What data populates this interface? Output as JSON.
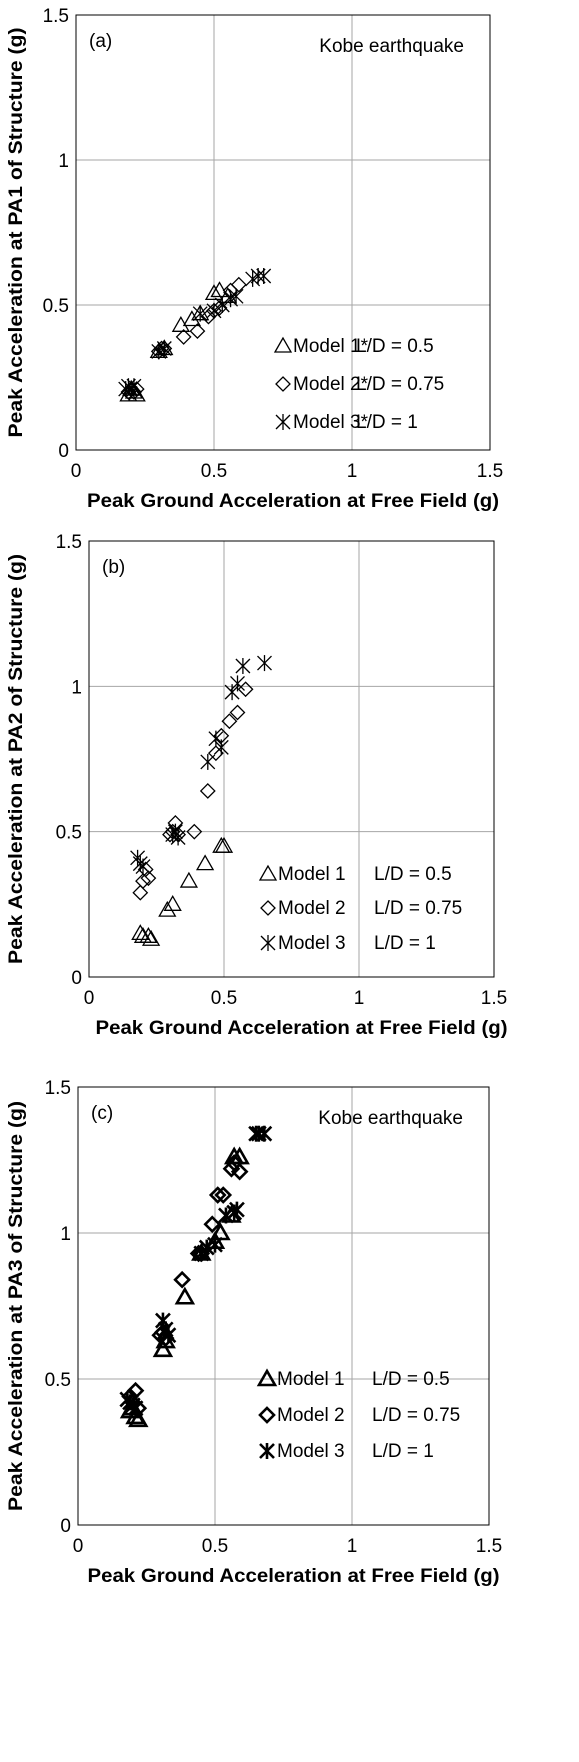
{
  "chart_data": [
    {
      "type": "scatter",
      "panel_label": "(a)",
      "annotation": "Kobe earthquake",
      "xlabel": "Peak Ground Acceleration at Free Field (g)",
      "ylabel": "Peak Acceleration at PA1 of Structure (g)",
      "xlim": [
        0,
        1.5
      ],
      "ylim": [
        0,
        1.5
      ],
      "xticks": [
        "0",
        "0.5",
        "1",
        "1.5"
      ],
      "yticks": [
        "0",
        "0.5",
        "1",
        "1.5"
      ],
      "grid": true,
      "legend_position": "bottom-right",
      "series": [
        {
          "name": "Model 1*",
          "ld": "L/D = 0.5",
          "marker": "triangle",
          "x": [
            0.19,
            0.2,
            0.21,
            0.22,
            0.3,
            0.32,
            0.38,
            0.42,
            0.45,
            0.5,
            0.52,
            0.55
          ],
          "y": [
            0.19,
            0.21,
            0.2,
            0.19,
            0.34,
            0.35,
            0.43,
            0.45,
            0.47,
            0.54,
            0.55,
            0.53
          ]
        },
        {
          "name": "Model 2*",
          "ld": "L/D = 0.75",
          "marker": "diamond",
          "x": [
            0.19,
            0.2,
            0.21,
            0.22,
            0.3,
            0.31,
            0.32,
            0.39,
            0.44,
            0.48,
            0.5,
            0.52,
            0.56,
            0.59
          ],
          "y": [
            0.2,
            0.21,
            0.2,
            0.21,
            0.34,
            0.35,
            0.35,
            0.39,
            0.41,
            0.46,
            0.48,
            0.49,
            0.55,
            0.57
          ]
        },
        {
          "name": "Model 3*",
          "ld": "L/D = 1",
          "marker": "asterisk",
          "x": [
            0.18,
            0.19,
            0.2,
            0.21,
            0.3,
            0.32,
            0.45,
            0.5,
            0.53,
            0.56,
            0.58,
            0.64,
            0.66,
            0.68
          ],
          "y": [
            0.21,
            0.22,
            0.21,
            0.22,
            0.34,
            0.35,
            0.47,
            0.48,
            0.5,
            0.52,
            0.53,
            0.59,
            0.6,
            0.6
          ]
        }
      ]
    },
    {
      "type": "scatter",
      "panel_label": "(b)",
      "annotation": "",
      "xlabel": "Peak Ground Acceleration at Free Field (g)",
      "ylabel": "Peak Acceleration at PA2 of Structure (g)",
      "xlim": [
        0,
        1.5
      ],
      "ylim": [
        0,
        1.5
      ],
      "xticks": [
        "0",
        "0.5",
        "1",
        "1.5"
      ],
      "yticks": [
        "0",
        "0.5",
        "1",
        "1.5"
      ],
      "grid": true,
      "legend_position": "bottom-right",
      "series": [
        {
          "name": "Model 1",
          "ld": "L/D = 0.5",
          "marker": "triangle",
          "x": [
            0.19,
            0.2,
            0.22,
            0.23,
            0.29,
            0.31,
            0.37,
            0.43,
            0.49,
            0.5
          ],
          "y": [
            0.15,
            0.14,
            0.14,
            0.13,
            0.23,
            0.25,
            0.33,
            0.39,
            0.45,
            0.45
          ]
        },
        {
          "name": "Model 2",
          "ld": "L/D = 0.75",
          "marker": "diamond",
          "x": [
            0.19,
            0.2,
            0.21,
            0.22,
            0.3,
            0.31,
            0.32,
            0.33,
            0.39,
            0.44,
            0.47,
            0.49,
            0.52,
            0.55,
            0.58
          ],
          "y": [
            0.29,
            0.33,
            0.37,
            0.34,
            0.49,
            0.5,
            0.53,
            0.49,
            0.5,
            0.64,
            0.77,
            0.83,
            0.88,
            0.91,
            0.99
          ]
        },
        {
          "name": "Model 3",
          "ld": "L/D = 1",
          "marker": "asterisk",
          "x": [
            0.18,
            0.19,
            0.2,
            0.31,
            0.32,
            0.33,
            0.44,
            0.47,
            0.49,
            0.53,
            0.55,
            0.57,
            0.65
          ],
          "y": [
            0.41,
            0.39,
            0.38,
            0.49,
            0.5,
            0.48,
            0.74,
            0.82,
            0.79,
            0.98,
            1.01,
            1.07,
            1.08
          ]
        }
      ]
    },
    {
      "type": "scatter",
      "panel_label": "(c)",
      "annotation": "Kobe earthquake",
      "xlabel": "Peak Ground Acceleration at Free Field (g)",
      "ylabel": "Peak Acceleration at PA3 of Structure (g)",
      "xlim": [
        0,
        1.5
      ],
      "ylim": [
        0,
        1.5
      ],
      "xticks": [
        "0",
        "0.5",
        "1",
        "1.5"
      ],
      "yticks": [
        "0",
        "0.5",
        "1",
        "1.5"
      ],
      "grid": true,
      "legend_position": "bottom-right",
      "series": [
        {
          "name": "Model 1",
          "ld": "L/D = 0.5",
          "marker": "triangle",
          "x": [
            0.19,
            0.2,
            0.21,
            0.22,
            0.31,
            0.32,
            0.39,
            0.45,
            0.5,
            0.52,
            0.56,
            0.57,
            0.59
          ],
          "y": [
            0.39,
            0.4,
            0.37,
            0.36,
            0.6,
            0.63,
            0.78,
            0.93,
            0.97,
            1.0,
            1.06,
            1.26,
            1.26
          ]
        },
        {
          "name": "Model 2",
          "ld": "L/D = 0.75",
          "marker": "diamond",
          "x": [
            0.19,
            0.2,
            0.21,
            0.22,
            0.3,
            0.31,
            0.32,
            0.38,
            0.44,
            0.45,
            0.49,
            0.51,
            0.53,
            0.56,
            0.57,
            0.59
          ],
          "y": [
            0.44,
            0.42,
            0.46,
            0.4,
            0.65,
            0.66,
            0.64,
            0.84,
            0.93,
            0.93,
            1.03,
            1.13,
            1.13,
            1.22,
            1.24,
            1.21
          ]
        },
        {
          "name": "Model 3",
          "ld": "L/D = 1",
          "marker": "asterisk",
          "x": [
            0.18,
            0.19,
            0.2,
            0.21,
            0.31,
            0.32,
            0.33,
            0.45,
            0.47,
            0.5,
            0.54,
            0.57,
            0.58,
            0.65,
            0.66,
            0.68
          ],
          "y": [
            0.43,
            0.42,
            0.41,
            0.4,
            0.7,
            0.67,
            0.65,
            0.93,
            0.95,
            0.96,
            1.06,
            1.07,
            1.08,
            1.34,
            1.34,
            1.34
          ]
        }
      ]
    }
  ]
}
